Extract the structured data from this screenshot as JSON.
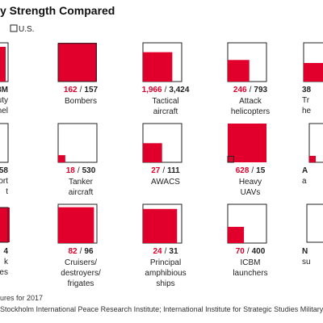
{
  "chart_data": {
    "type": "proportional-squares",
    "title": "y Strength Compared",
    "separator": "/",
    "categories": [
      [
        "Bombers"
      ],
      [
        "Tactical",
        "aircraft"
      ],
      [
        "Attack",
        "helicopters"
      ],
      [
        "Tanker",
        "aircraft"
      ],
      [
        "AWACS"
      ],
      [
        "Heavy",
        "UAVs"
      ],
      [
        "Cruisers/",
        "destroyers/",
        "frigates"
      ],
      [
        "Principal",
        "amphibious",
        "ships"
      ],
      [
        "ICBM",
        "launchers"
      ]
    ],
    "series": [
      {
        "color": "#e0002b",
        "values": [
          162,
          1966,
          246,
          18,
          27,
          628,
          82,
          24,
          70
        ],
        "value_labels": [
          "162",
          "1,966",
          "246",
          "18",
          "27",
          "628",
          "82",
          "24",
          "70"
        ]
      },
      {
        "name": "U.S.",
        "color": "#222222",
        "values": [
          157,
          3424,
          793,
          530,
          111,
          15,
          96,
          31,
          400
        ],
        "value_labels": [
          "157",
          "3,424",
          "793",
          "530",
          "111",
          "15",
          "96",
          "31",
          "400"
        ]
      }
    ],
    "partial_cells": [
      {
        "texts": [
          "3M",
          "uty",
          "nel"
        ]
      },
      {
        "texts": [
          "58",
          "ort",
          "t"
        ]
      },
      {
        "texts": [
          "4",
          "k",
          "nes"
        ]
      },
      {
        "texts": [
          "38",
          "Tr",
          "he"
        ]
      },
      {
        "texts": [
          "A",
          "a"
        ]
      },
      {
        "texts": [
          "N",
          "su"
        ]
      }
    ],
    "footnotes": [
      "ures for 2017",
      "Stockholm International Peace Research Institute; International Institute for Strategic Studies Military Ba"
    ]
  }
}
